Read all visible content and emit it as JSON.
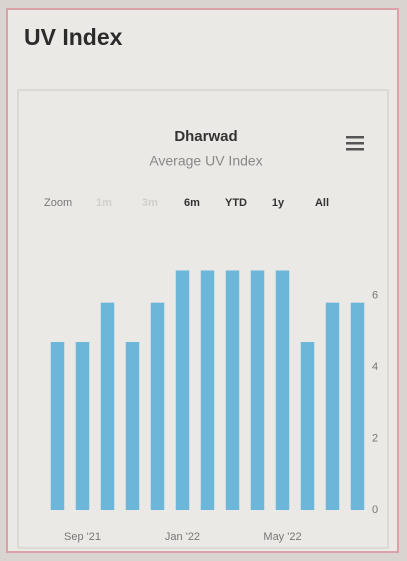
{
  "page_title": "UV Index",
  "range_selector": {
    "label": "Zoom",
    "buttons": [
      "1m",
      "3m",
      "6m",
      "YTD",
      "1y",
      "All"
    ]
  },
  "chart_data": {
    "type": "bar",
    "title": "Dharwad",
    "subtitle": "Average UV Index",
    "categories": [
      null,
      "Sep '21",
      null,
      null,
      null,
      "Jan '22",
      null,
      null,
      null,
      "May '22",
      null,
      null,
      null
    ],
    "values": [
      4.7,
      4.7,
      5.8,
      4.7,
      5.8,
      6.7,
      6.7,
      6.7,
      6.7,
      6.7,
      4.7,
      5.8,
      5.8
    ],
    "color": "#6cb6da",
    "ylim": [
      0,
      8
    ],
    "yticks": [
      0,
      2,
      4,
      6
    ],
    "grid": false
  }
}
